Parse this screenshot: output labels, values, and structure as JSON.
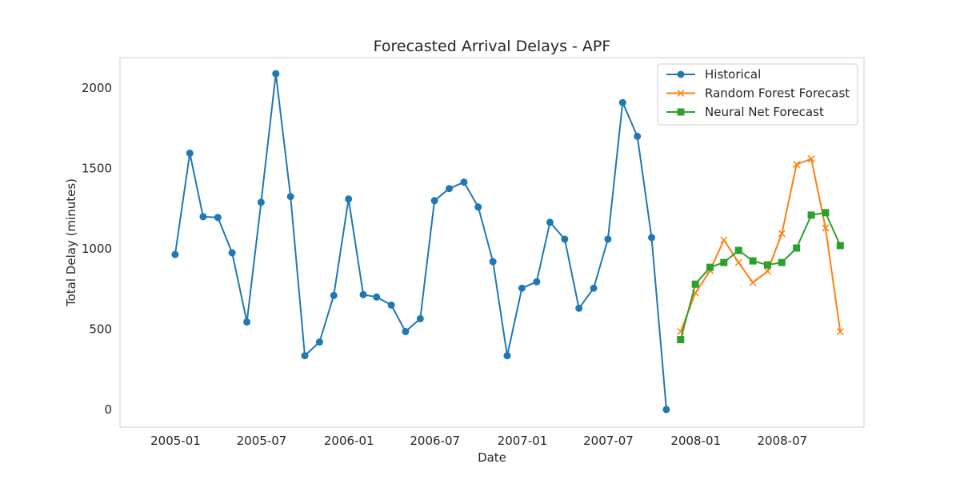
{
  "chart_data": {
    "type": "line",
    "title": "Forecasted Arrival Delays - APF",
    "xlabel": "Date",
    "ylabel": "Total Delay (minutes)",
    "ylim": [
      -110,
      2190
    ],
    "yticks": [
      0,
      500,
      1000,
      1500,
      2000
    ],
    "xlim": [
      "2004-09-06",
      "2008-12-20"
    ],
    "xticks": [
      "2005-01",
      "2005-07",
      "2006-01",
      "2006-07",
      "2007-01",
      "2007-07",
      "2008-01",
      "2008-07"
    ],
    "grid": false,
    "legend_position": "top-right",
    "series": [
      {
        "name": "Historical",
        "color": "#1f77b4",
        "marker": "circle",
        "x": [
          "2004-12-31",
          "2005-01-31",
          "2005-02-28",
          "2005-03-31",
          "2005-04-30",
          "2005-05-31",
          "2005-06-30",
          "2005-07-31",
          "2005-08-31",
          "2005-09-30",
          "2005-10-31",
          "2005-11-30",
          "2005-12-31",
          "2006-01-31",
          "2006-02-28",
          "2006-03-31",
          "2006-04-30",
          "2006-05-31",
          "2006-06-30",
          "2006-07-31",
          "2006-08-31",
          "2006-09-30",
          "2006-10-31",
          "2006-11-30",
          "2006-12-31",
          "2007-01-31",
          "2007-02-28",
          "2007-03-31",
          "2007-04-30",
          "2007-05-31",
          "2007-06-30",
          "2007-07-31",
          "2007-08-31",
          "2007-09-30",
          "2007-10-31"
        ],
        "values": [
          965,
          1595,
          1200,
          1195,
          975,
          545,
          1290,
          2090,
          1325,
          335,
          420,
          710,
          1310,
          715,
          700,
          650,
          485,
          565,
          1300,
          1375,
          1415,
          1260,
          920,
          335,
          755,
          795,
          1165,
          1060,
          630,
          755,
          1060,
          1910,
          1700,
          1070,
          0
        ]
      },
      {
        "name": "Random Forest Forecast",
        "color": "#ff7f0e",
        "marker": "x",
        "x": [
          "2007-11-30",
          "2007-12-31",
          "2008-01-31",
          "2008-02-29",
          "2008-03-31",
          "2008-04-30",
          "2008-05-31",
          "2008-06-30",
          "2008-07-31",
          "2008-08-31",
          "2008-09-30",
          "2008-10-31"
        ],
        "values": [
          485,
          725,
          865,
          1055,
          915,
          790,
          860,
          1095,
          1525,
          1560,
          1130,
          485
        ]
      },
      {
        "name": "Neural Net Forecast",
        "color": "#2ca02c",
        "marker": "square",
        "x": [
          "2007-11-30",
          "2007-12-31",
          "2008-01-31",
          "2008-02-29",
          "2008-03-31",
          "2008-04-30",
          "2008-05-31",
          "2008-06-30",
          "2008-07-31",
          "2008-08-31",
          "2008-09-30",
          "2008-10-31"
        ],
        "values": [
          435,
          780,
          885,
          915,
          990,
          925,
          900,
          915,
          1005,
          1210,
          1225,
          1020
        ]
      }
    ]
  }
}
